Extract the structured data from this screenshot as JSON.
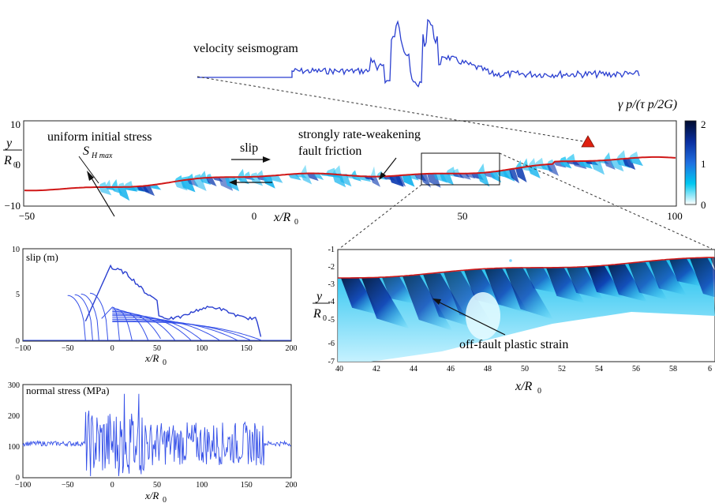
{
  "figure": {
    "seismogram_label": "velocity seismogram",
    "fault_panel": {
      "ylabel_top": "y",
      "ylabel_bottom": "R",
      "ylabel_sub": "0",
      "xlabel_x": "x/R",
      "xlabel_sub": "0",
      "yticks": [
        "10",
        "0",
        "−10"
      ],
      "xticks": [
        "−50",
        "0",
        "50",
        "100"
      ],
      "annot_stress": "uniform initial stress",
      "annot_shmax_main": "S",
      "annot_shmax_sub": "H max",
      "annot_slip": "slip",
      "annot_friction_1": "strongly rate-weakening",
      "annot_friction_2": "fault friction"
    },
    "colorbar": {
      "title": "γ p/(τ p/2G)",
      "ticks": [
        "2",
        "1",
        "0"
      ],
      "colors": [
        "#000b2e",
        "#0a2fa0",
        "#1f6fe0",
        "#00c8f0",
        "#ffffff"
      ]
    },
    "slip_panel": {
      "title": "slip (m)",
      "yticks": [
        "10",
        "5",
        "0"
      ],
      "xticks": [
        "−100",
        "−50",
        "0",
        "50",
        "100",
        "150",
        "200"
      ],
      "xlabel": "x/R",
      "xlabel_sub": "0"
    },
    "stress_panel": {
      "title": "normal stress (MPa)",
      "yticks": [
        "300",
        "200",
        "100",
        "0"
      ],
      "xticks": [
        "−100",
        "−50",
        "0",
        "50",
        "100",
        "150",
        "200"
      ],
      "xlabel": "x/R",
      "xlabel_sub": "0"
    },
    "zoom_panel": {
      "yticks": [
        "-1",
        "-2",
        "-3",
        "-4",
        "-5",
        "-6",
        "-7"
      ],
      "xticks": [
        "40",
        "42",
        "44",
        "46",
        "48",
        "50",
        "52",
        "54",
        "56",
        "58",
        "6"
      ],
      "ylabel_top": "y",
      "ylabel_bottom": "R",
      "ylabel_sub": "0",
      "xlabel": "x/R",
      "xlabel_sub": "0",
      "annot": "off-fault plastic strain"
    },
    "colors": {
      "fault_line": "#d01818",
      "seismogram": "#2a3fd0",
      "curves": "#3550e8",
      "station": "#e02010"
    }
  }
}
